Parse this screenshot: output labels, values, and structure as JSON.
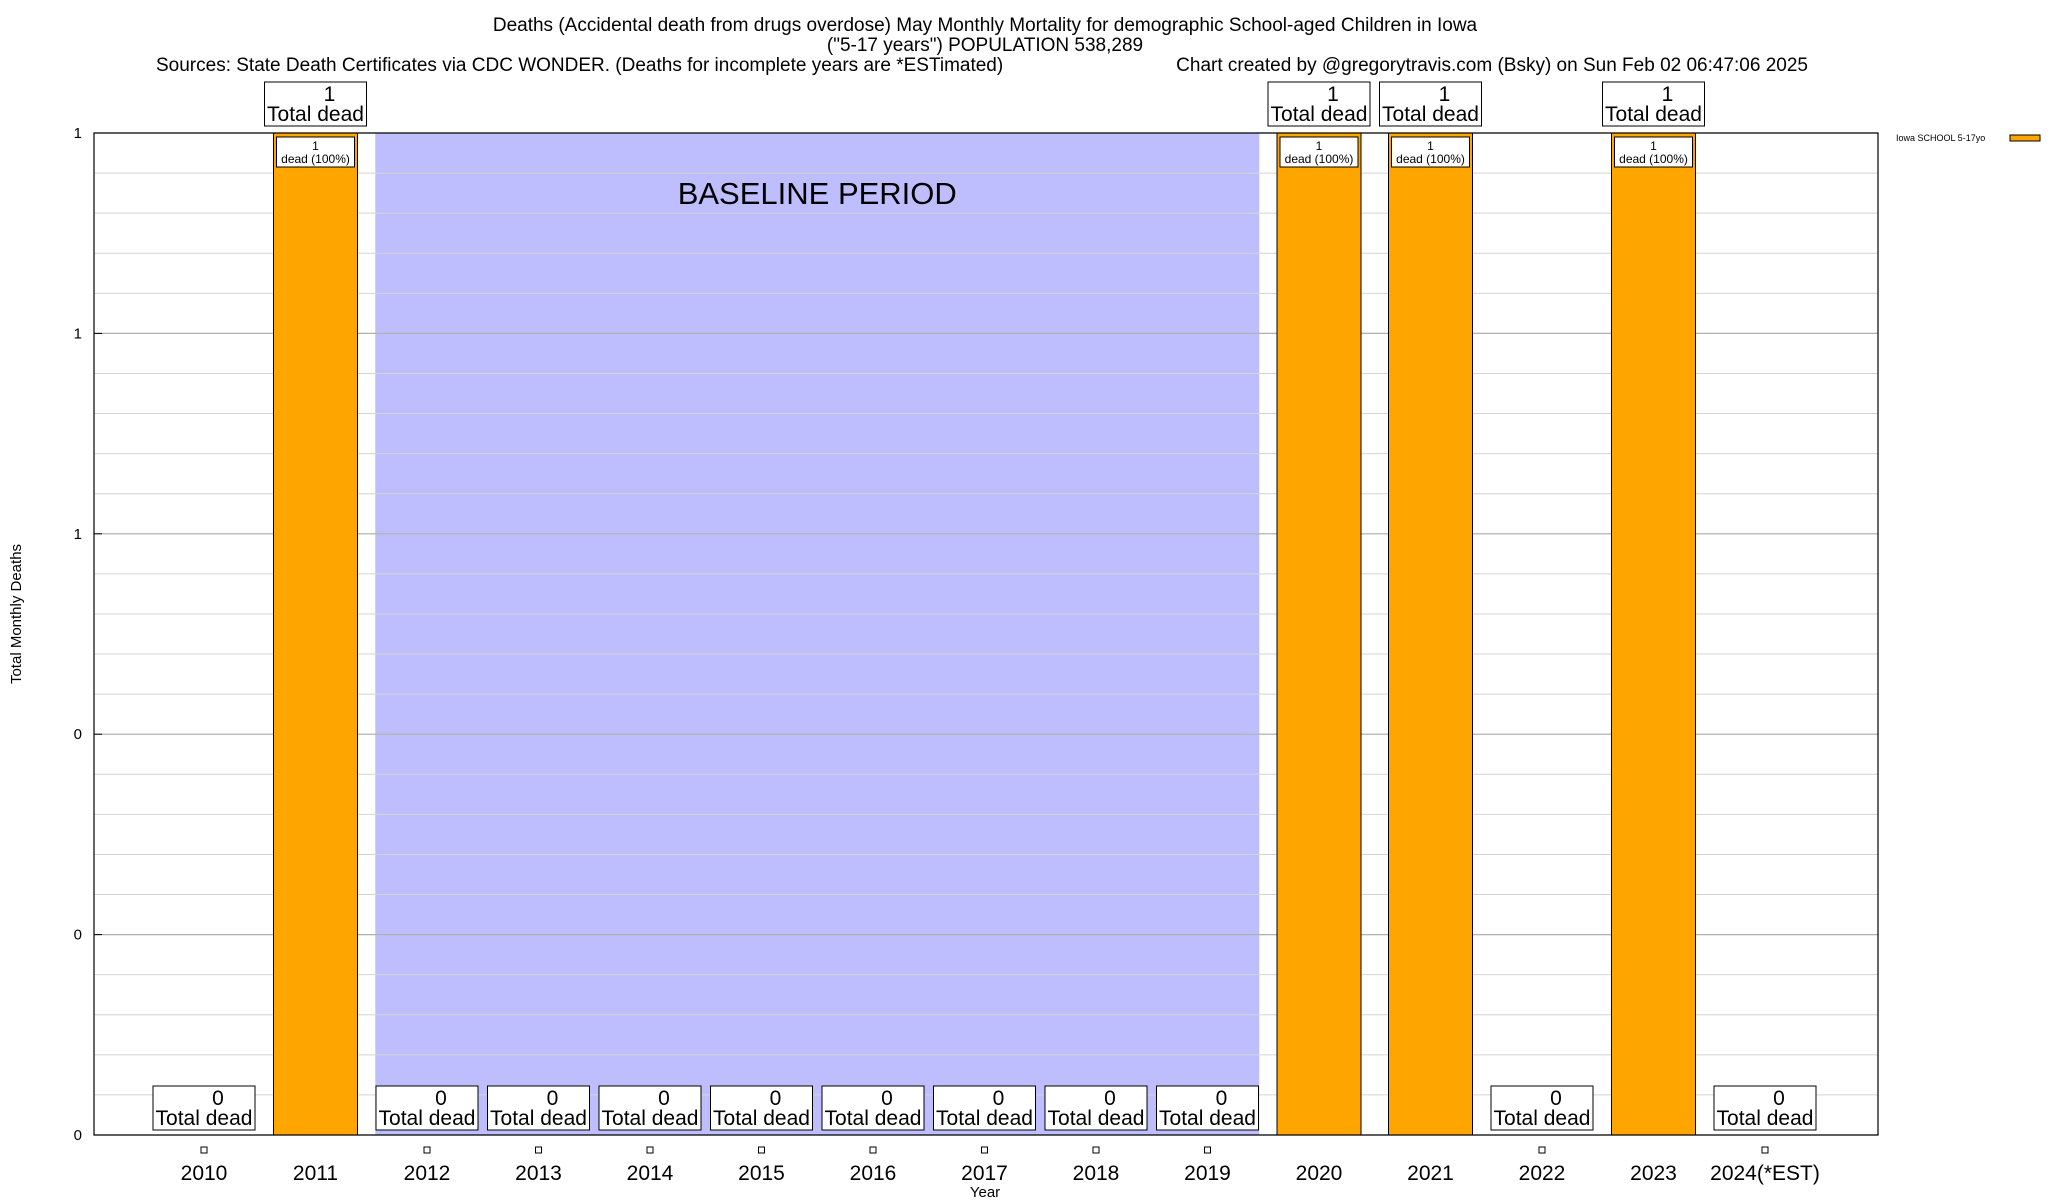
{
  "chart_data": {
    "type": "bar",
    "title": "Deaths (Accidental death from drugs overdose) May Monthly Mortality for demographic School-aged Children in Iowa",
    "subtitle": "(\"5-17 years\") POPULATION 538,289",
    "sources": "Sources: State Death Certificates via CDC WONDER. (Deaths for incomplete years are *ESTimated)",
    "credit": "Chart created by @gregorytravis.com (Bsky) on Sun Feb 02 06:47:06 2025",
    "xlabel": "Year",
    "ylabel": "Total Monthly Deaths",
    "categories": [
      "2010",
      "2011",
      "2012",
      "2013",
      "2014",
      "2015",
      "2016",
      "2017",
      "2018",
      "2019",
      "2020",
      "2021",
      "2022",
      "2023",
      "2024(*EST)"
    ],
    "series": [
      {
        "name": "Iowa SCHOOL 5-17yo",
        "color": "#FFA500",
        "values": [
          0,
          1,
          0,
          0,
          0,
          0,
          0,
          0,
          0,
          0,
          1,
          1,
          0,
          1,
          0
        ]
      }
    ],
    "total_labels": [
      "0",
      "1",
      "0",
      "0",
      "0",
      "0",
      "0",
      "0",
      "0",
      "0",
      "1",
      "1",
      "0",
      "1",
      "0"
    ],
    "total_suffix": "Total dead",
    "bar_labels": [
      "",
      "1",
      "",
      "",
      "",
      "",
      "",
      "",
      "",
      "",
      "1",
      "1",
      "",
      "1",
      ""
    ],
    "bar_label_suffix": "dead (100%)",
    "yticks": [
      {
        "value": 0,
        "label": "0"
      },
      {
        "value": 0.2,
        "label": "0"
      },
      {
        "value": 0.4,
        "label": "0"
      },
      {
        "value": 0.6,
        "label": "1"
      },
      {
        "value": 0.8,
        "label": "1"
      },
      {
        "value": 1.0,
        "label": "1"
      }
    ],
    "ylim": [
      0,
      1
    ],
    "grid": true,
    "baseline_period": {
      "label": "BASELINE PERIOD",
      "start": "2012",
      "end": "2019",
      "color": "#BEBEFF"
    },
    "legend_position": "top-right"
  }
}
